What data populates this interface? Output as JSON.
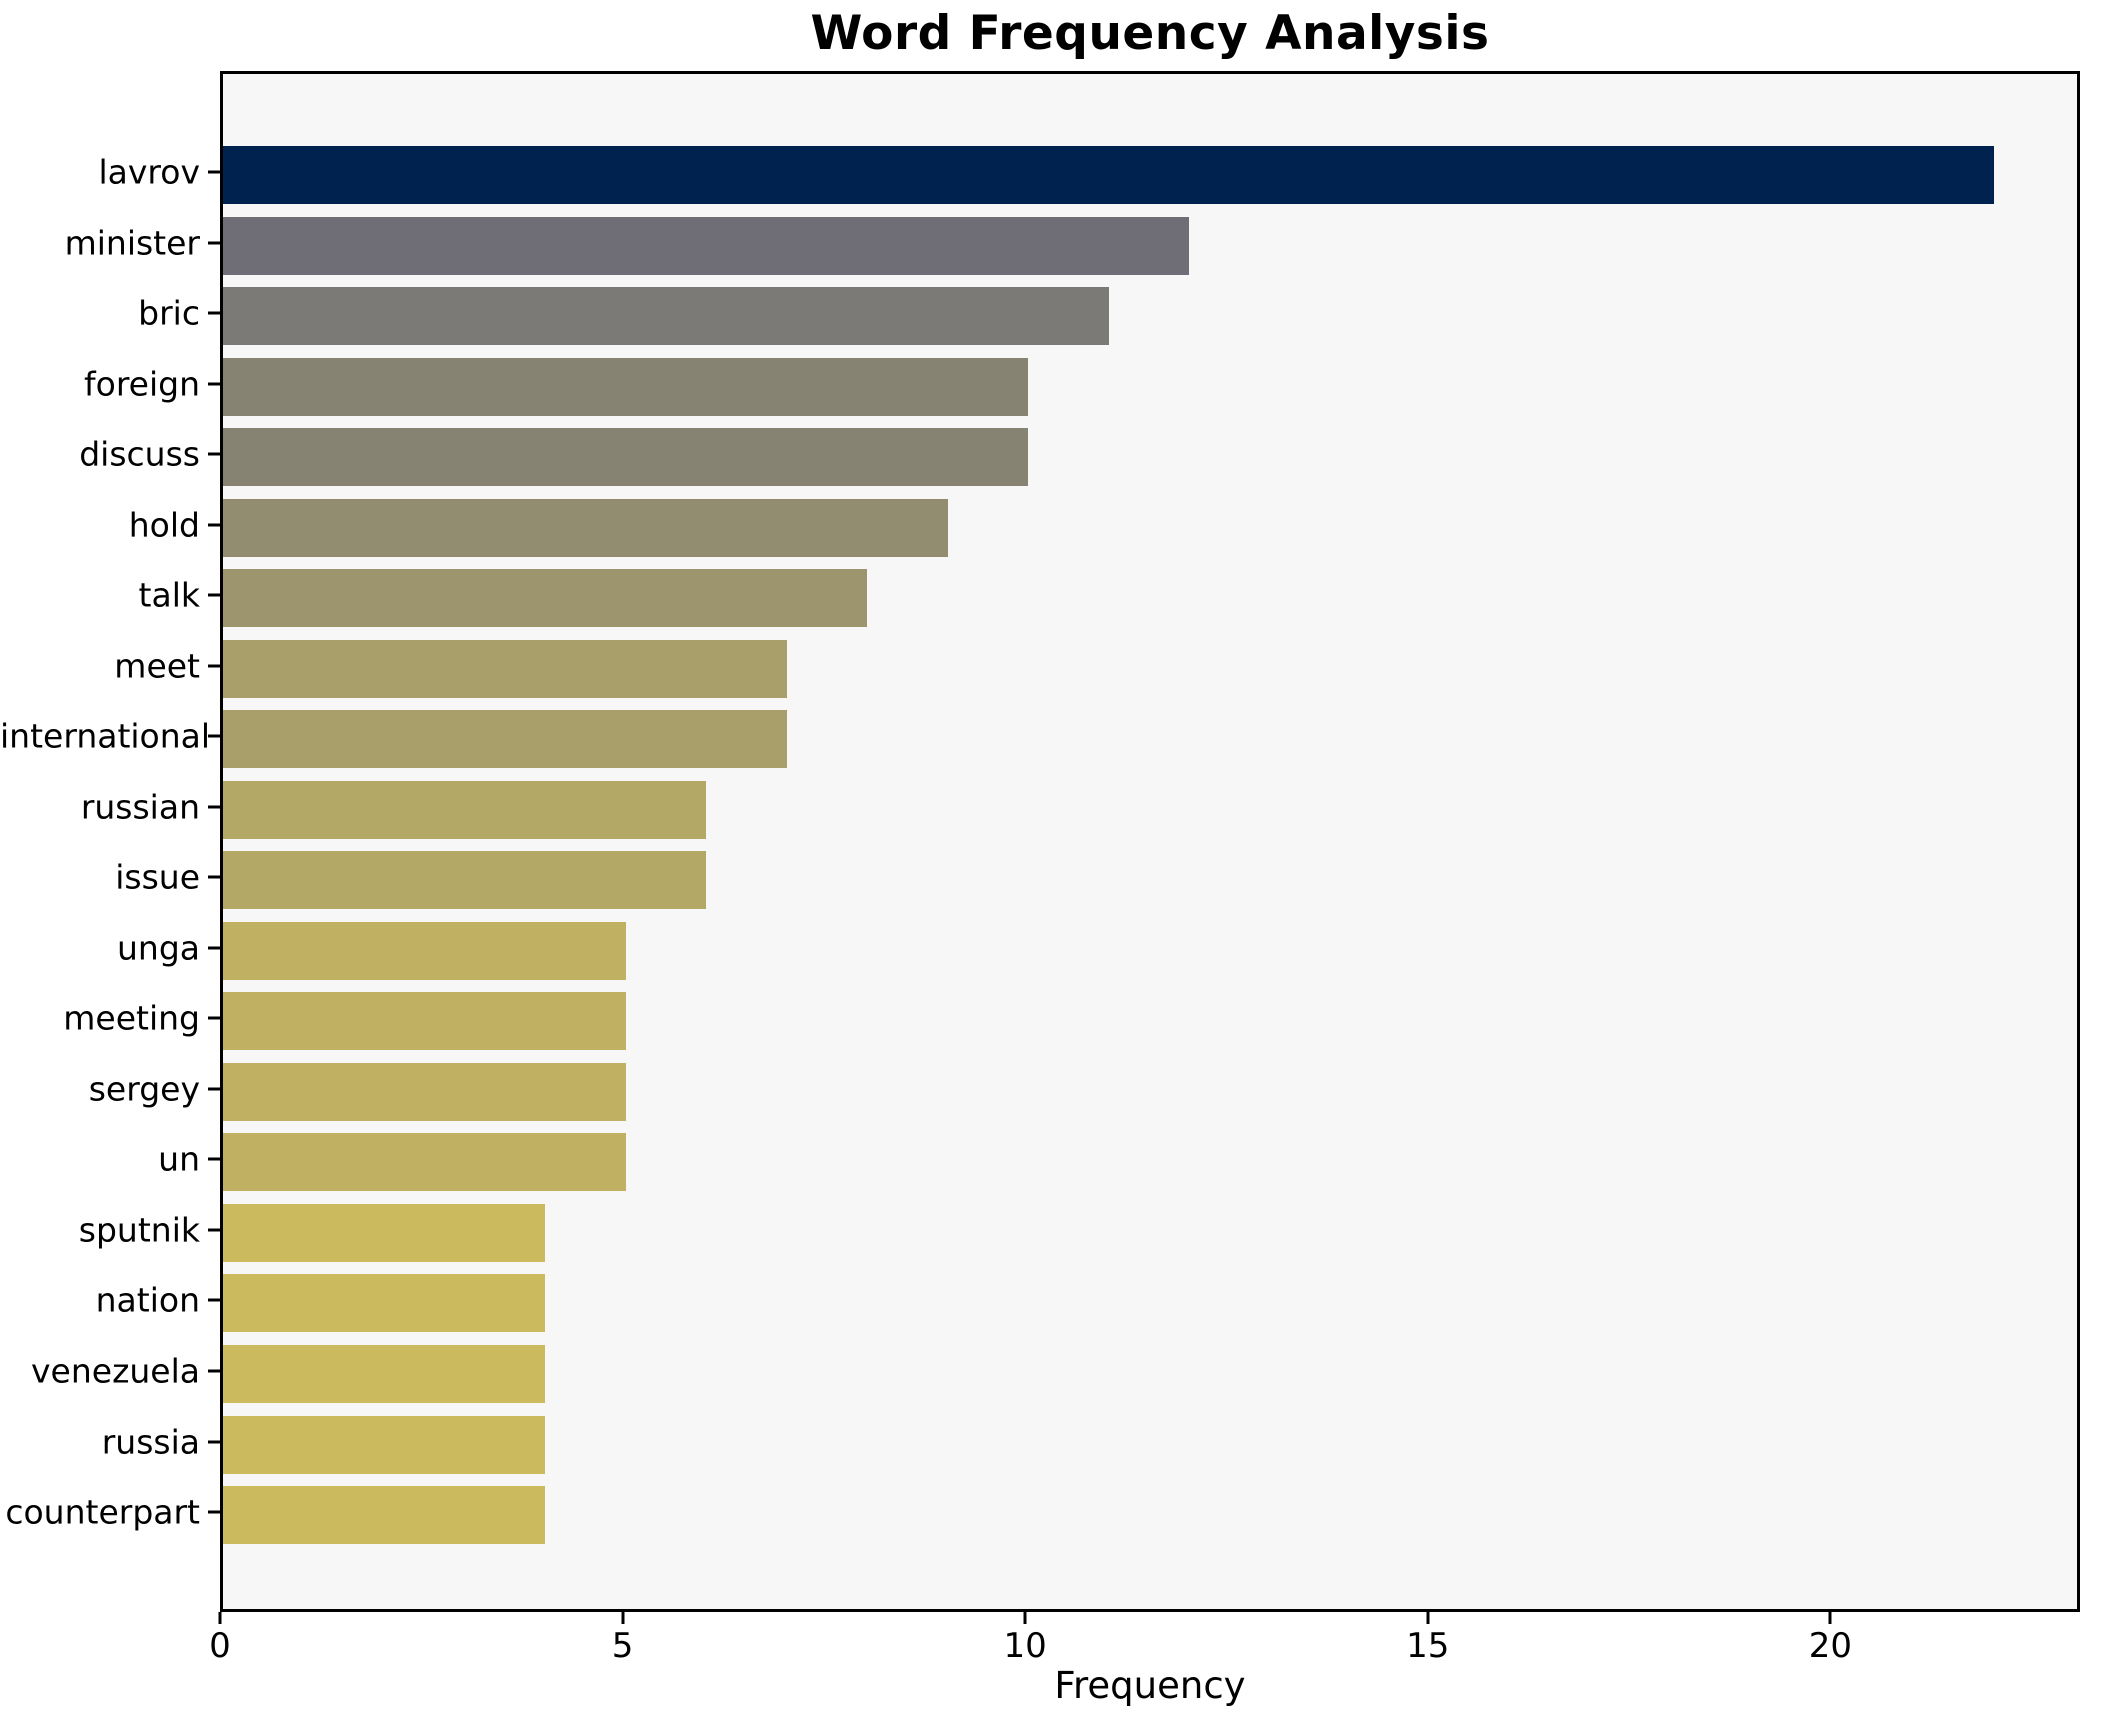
{
  "chart_data": {
    "type": "bar",
    "orientation": "horizontal",
    "title": "Word Frequency Analysis",
    "xlabel": "Frequency",
    "ylabel": "",
    "categories": [
      "lavrov",
      "minister",
      "bric",
      "foreign",
      "discuss",
      "hold",
      "talk",
      "meet",
      "international",
      "russian",
      "issue",
      "unga",
      "meeting",
      "sergey",
      "un",
      "sputnik",
      "nation",
      "venezuela",
      "russia",
      "counterpart"
    ],
    "values": [
      22,
      12,
      11,
      10,
      10,
      9,
      8,
      7,
      7,
      6,
      6,
      5,
      5,
      5,
      5,
      4,
      4,
      4,
      4,
      4
    ],
    "bar_colors": [
      "#00224e",
      "#6f6e76",
      "#7b7a77",
      "#868372",
      "#868372",
      "#928d70",
      "#9d956d",
      "#a99f6a",
      "#a99f6a",
      "#b4a866",
      "#b4a866",
      "#c0b162",
      "#c0b162",
      "#c0b162",
      "#c0b162",
      "#ccbb5e",
      "#ccbb5e",
      "#ccbb5e",
      "#ccbb5e",
      "#ccbb5e"
    ],
    "colormap": "cividis",
    "xticks": [
      0,
      5,
      10,
      15,
      20
    ],
    "xlim": [
      0,
      23.1
    ],
    "grid": false,
    "plot_background": "#f7f7f7",
    "figure_background": "#ffffff",
    "spine_color": "#000000"
  }
}
